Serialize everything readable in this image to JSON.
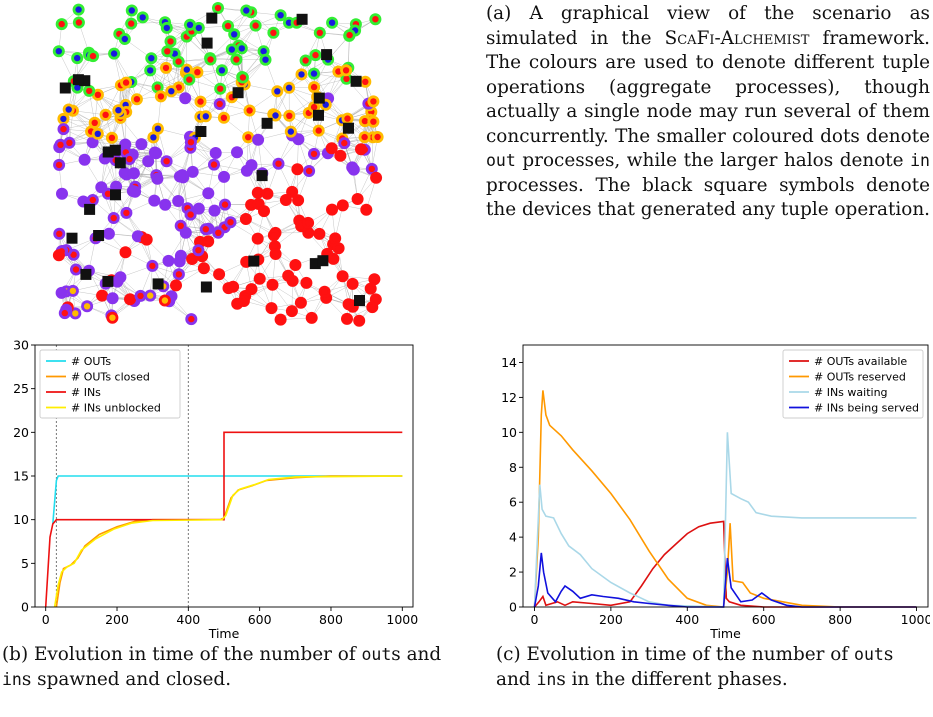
{
  "caption_a": {
    "label": "(a)",
    "t1": "A graphical view of the scenario as simulated in the ",
    "framework_name": "ScaFi-Alchemist",
    "t2": " framework. The colours are used to de­note different tuple operations (aggre­gate processes), though actually a sin­gle node may run several of them con­currently. The smaller coloured dots denote ",
    "code_out": "out",
    "t3": " processes, while the larger halos denote ",
    "code_in": "in",
    "t4": " processes. The black square symbols denote the devices that generated any tuple operation."
  },
  "caption_b": {
    "label": "(b)",
    "t1": "Evolution in time of the number of ",
    "code_out": "out",
    "t2": "s and ",
    "code_in": "in",
    "t3": "s spawned and closed."
  },
  "caption_c": {
    "label": "(c)",
    "t1": "Evolution in time of the number of ",
    "code_out": "out",
    "t2": "s and ",
    "code_in": "in",
    "t3": "s in the different phases."
  },
  "network": {
    "colors": {
      "green": "#33ee33",
      "orange": "#ffbb00",
      "purple": "#8833ee",
      "red": "#ff1111",
      "blue": "#1a1adf",
      "square": "#111111",
      "edge": "#999999"
    }
  },
  "chart_data": [
    {
      "type": "line",
      "xlabel": "Time",
      "ylabel": "",
      "xlim": [
        -30,
        1030
      ],
      "ylim": [
        0,
        30
      ],
      "xticks": [
        0,
        200,
        400,
        600,
        800,
        1000
      ],
      "yticks": [
        0,
        5,
        10,
        15,
        20,
        25,
        30
      ],
      "vlines": [
        30,
        400
      ],
      "legend_position": "top-left",
      "series": [
        {
          "name": "# OUTs",
          "color": "#22ddee",
          "points": [
            [
              20,
              9.5
            ],
            [
              25,
              12
            ],
            [
              30,
              14.5
            ],
            [
              35,
              15
            ],
            [
              1000,
              15
            ]
          ]
        },
        {
          "name": "# OUTs closed",
          "color": "#ff9900",
          "points": [
            [
              30,
              0
            ],
            [
              40,
              2.8
            ],
            [
              50,
              4.4
            ],
            [
              70,
              4.8
            ],
            [
              90,
              5.6
            ],
            [
              110,
              7
            ],
            [
              150,
              8.3
            ],
            [
              200,
              9.2
            ],
            [
              250,
              9.8
            ],
            [
              300,
              10
            ],
            [
              490,
              10
            ],
            [
              500,
              10.2
            ],
            [
              520,
              12.5
            ],
            [
              540,
              13.4
            ],
            [
              580,
              13.9
            ],
            [
              620,
              14.5
            ],
            [
              700,
              14.8
            ],
            [
              800,
              15
            ],
            [
              1000,
              15
            ]
          ]
        },
        {
          "name": "# INs",
          "color": "#ee1111",
          "points": [
            [
              0,
              0
            ],
            [
              12,
              8
            ],
            [
              20,
              9.5
            ],
            [
              30,
              10
            ],
            [
              500,
              10
            ],
            [
              500,
              20
            ],
            [
              1000,
              20
            ]
          ]
        },
        {
          "name": "# INs unblocked",
          "color": "#ffee00",
          "points": [
            [
              25,
              0
            ],
            [
              35,
              2.5
            ],
            [
              45,
              4
            ],
            [
              60,
              4.6
            ],
            [
              80,
              5
            ],
            [
              100,
              6.5
            ],
            [
              140,
              7.8
            ],
            [
              190,
              8.9
            ],
            [
              240,
              9.6
            ],
            [
              300,
              9.9
            ],
            [
              495,
              10
            ],
            [
              505,
              10.5
            ],
            [
              525,
              12.8
            ],
            [
              545,
              13.5
            ],
            [
              585,
              14
            ],
            [
              625,
              14.6
            ],
            [
              700,
              14.9
            ],
            [
              1000,
              15
            ]
          ]
        }
      ]
    },
    {
      "type": "line",
      "xlabel": "Time",
      "ylabel": "",
      "xlim": [
        -30,
        1030
      ],
      "ylim": [
        0,
        15
      ],
      "xticks": [
        0,
        200,
        400,
        600,
        800,
        1000
      ],
      "yticks": [
        0,
        2,
        4,
        6,
        8,
        10,
        12,
        14
      ],
      "legend_position": "top-right",
      "series": [
        {
          "name": "# OUTs available",
          "color": "#dd1111",
          "points": [
            [
              0,
              0
            ],
            [
              12,
              0.3
            ],
            [
              22,
              0.6
            ],
            [
              30,
              0.1
            ],
            [
              60,
              0.3
            ],
            [
              80,
              0.1
            ],
            [
              100,
              0.3
            ],
            [
              150,
              0.2
            ],
            [
              200,
              0.1
            ],
            [
              250,
              0.3
            ],
            [
              280,
              1.2
            ],
            [
              310,
              2.2
            ],
            [
              340,
              3.0
            ],
            [
              370,
              3.6
            ],
            [
              400,
              4.2
            ],
            [
              430,
              4.6
            ],
            [
              460,
              4.8
            ],
            [
              495,
              4.9
            ],
            [
              502,
              0.5
            ],
            [
              510,
              0.3
            ],
            [
              540,
              0.1
            ],
            [
              600,
              0
            ],
            [
              1000,
              0
            ]
          ]
        },
        {
          "name": "# OUTs reserved",
          "color": "#ff9900",
          "points": [
            [
              0,
              0
            ],
            [
              10,
              4
            ],
            [
              18,
              11
            ],
            [
              22,
              12.4
            ],
            [
              30,
              11
            ],
            [
              40,
              10.4
            ],
            [
              70,
              9.8
            ],
            [
              100,
              9
            ],
            [
              150,
              7.8
            ],
            [
              200,
              6.5
            ],
            [
              250,
              5
            ],
            [
              300,
              3.2
            ],
            [
              350,
              1.6
            ],
            [
              400,
              0.5
            ],
            [
              450,
              0.1
            ],
            [
              495,
              0
            ],
            [
              505,
              2
            ],
            [
              512,
              4.8
            ],
            [
              520,
              1.5
            ],
            [
              545,
              1.4
            ],
            [
              565,
              0.8
            ],
            [
              600,
              0.5
            ],
            [
              650,
              0.3
            ],
            [
              700,
              0.1
            ],
            [
              800,
              0
            ],
            [
              1000,
              0
            ]
          ]
        },
        {
          "name": "# INs waiting",
          "color": "#aad8e8",
          "points": [
            [
              0,
              0
            ],
            [
              8,
              4
            ],
            [
              14,
              7
            ],
            [
              20,
              5.6
            ],
            [
              30,
              5.2
            ],
            [
              50,
              5.1
            ],
            [
              70,
              4.2
            ],
            [
              90,
              3.5
            ],
            [
              120,
              3
            ],
            [
              150,
              2.2
            ],
            [
              200,
              1.4
            ],
            [
              250,
              0.8
            ],
            [
              300,
              0.3
            ],
            [
              350,
              0.1
            ],
            [
              495,
              0
            ],
            [
              505,
              10
            ],
            [
              515,
              6.5
            ],
            [
              540,
              6.2
            ],
            [
              560,
              6
            ],
            [
              580,
              5.4
            ],
            [
              620,
              5.2
            ],
            [
              700,
              5.1
            ],
            [
              1000,
              5.1
            ]
          ]
        },
        {
          "name": "# INs being served",
          "color": "#1111dd",
          "points": [
            [
              0,
              0
            ],
            [
              10,
              1.2
            ],
            [
              18,
              3.1
            ],
            [
              24,
              2
            ],
            [
              35,
              0.8
            ],
            [
              55,
              0.3
            ],
            [
              70,
              0.9
            ],
            [
              80,
              1.2
            ],
            [
              100,
              0.9
            ],
            [
              120,
              0.5
            ],
            [
              150,
              0.7
            ],
            [
              180,
              0.6
            ],
            [
              220,
              0.5
            ],
            [
              260,
              0.3
            ],
            [
              300,
              0.2
            ],
            [
              350,
              0.1
            ],
            [
              400,
              0
            ],
            [
              495,
              0
            ],
            [
              505,
              2.8
            ],
            [
              515,
              1.1
            ],
            [
              540,
              0.3
            ],
            [
              570,
              0.4
            ],
            [
              595,
              0.8
            ],
            [
              620,
              0.4
            ],
            [
              660,
              0.1
            ],
            [
              700,
              0
            ],
            [
              1000,
              0
            ]
          ]
        }
      ]
    }
  ]
}
